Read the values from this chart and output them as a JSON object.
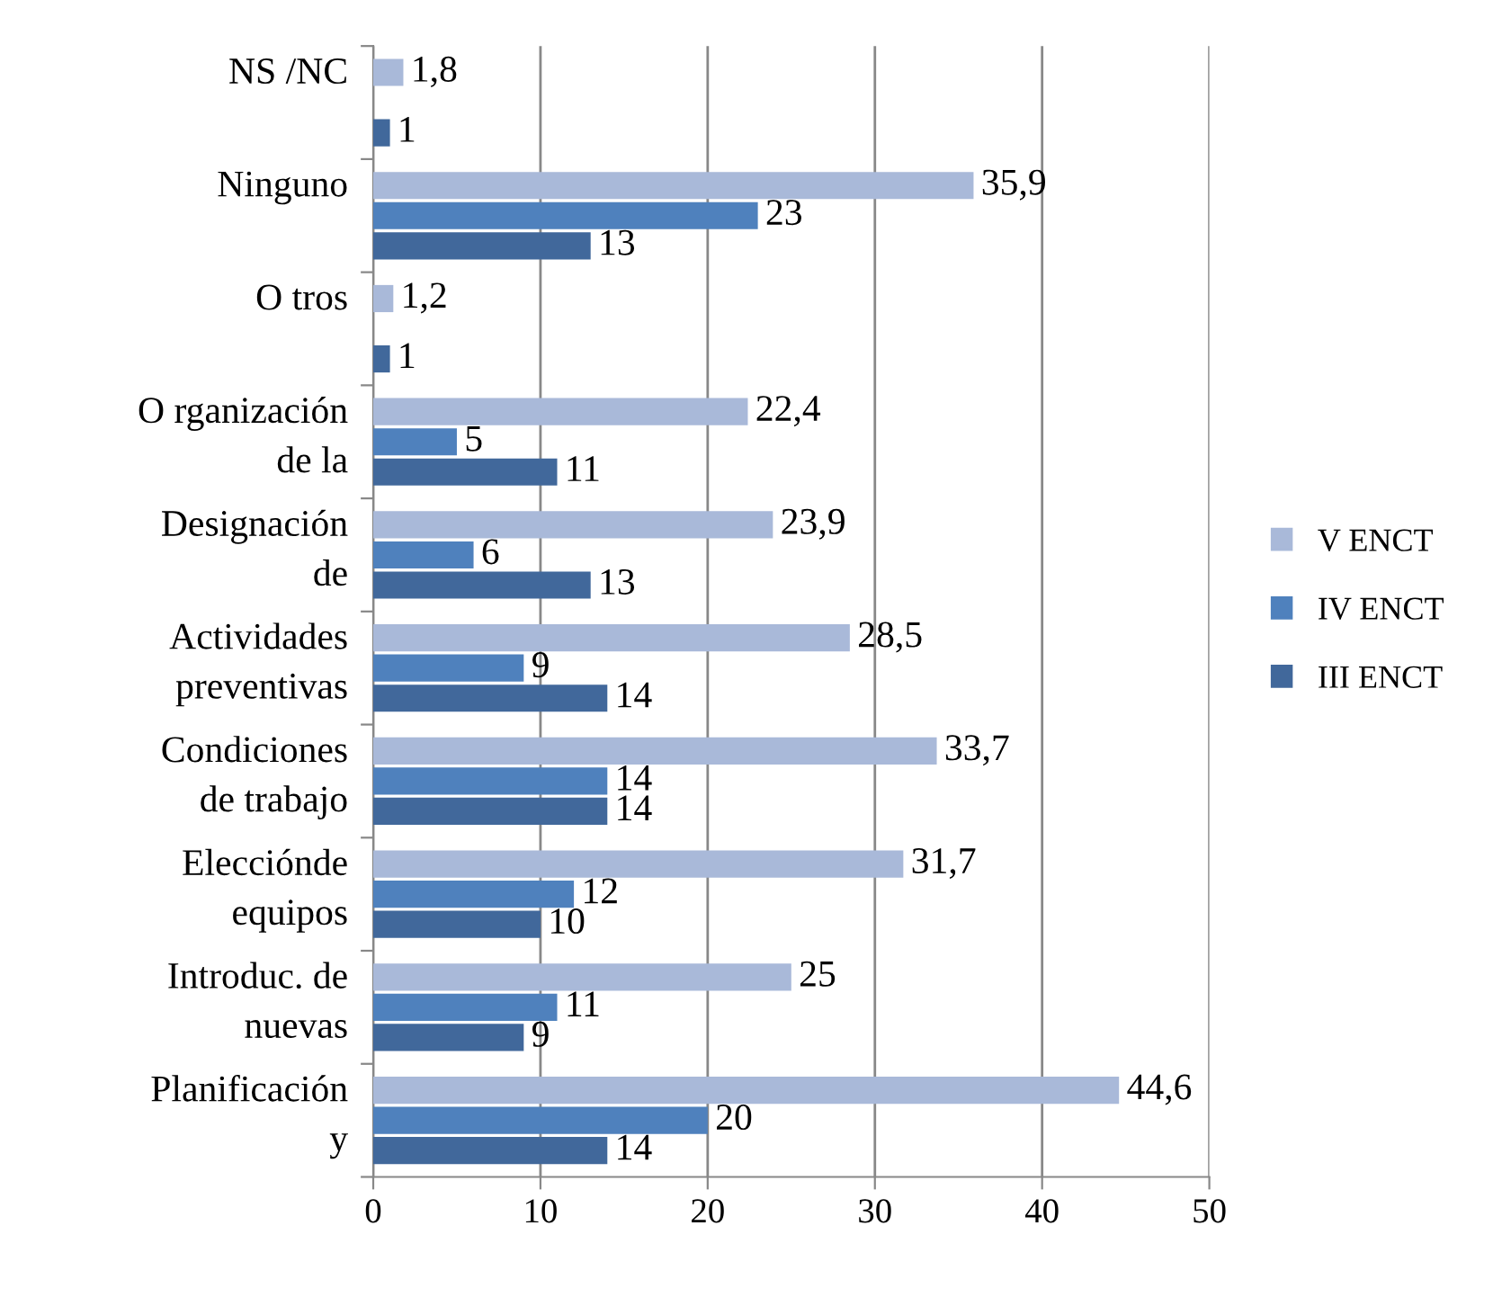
{
  "chart_data": {
    "type": "bar",
    "orientation": "horizontal",
    "categories": [
      "NS /NC",
      "Ninguno",
      "O tros",
      "O rganización\nde la",
      "Designación\nde",
      "Actividades\npreventivas",
      "Condiciones\nde trabajo",
      "Elecciónde\nequipos",
      "Introduc. de\nnuevas",
      "Planificación\ny"
    ],
    "series": [
      {
        "name": "V ENCT",
        "color": "#a9b9d9",
        "values": [
          1.8,
          35.9,
          1.2,
          22.4,
          23.9,
          28.5,
          33.7,
          31.7,
          25,
          44.6
        ],
        "value_labels": [
          "1,8",
          "35,9",
          "1,2",
          "22,4",
          "23,9",
          "28,5",
          "33,7",
          "31,7",
          "25",
          "44,6"
        ]
      },
      {
        "name": "IV ENCT",
        "color": "#4f81bd",
        "values": [
          null,
          23,
          null,
          5,
          6,
          9,
          14,
          12,
          11,
          20
        ],
        "value_labels": [
          null,
          "23",
          null,
          "5",
          "6",
          "9",
          "14",
          "12",
          "11",
          "20"
        ]
      },
      {
        "name": "III ENCT",
        "color": "#41689b",
        "values": [
          1,
          13,
          1,
          11,
          13,
          14,
          14,
          10,
          9,
          14
        ],
        "value_labels": [
          "1",
          "13",
          "1",
          "11",
          "13",
          "14",
          "14",
          "10",
          "9",
          "14"
        ]
      }
    ],
    "xlim": [
      0,
      50
    ],
    "xticks": [
      0,
      10,
      20,
      30,
      40,
      50
    ],
    "grid": "x",
    "legend": "right"
  }
}
